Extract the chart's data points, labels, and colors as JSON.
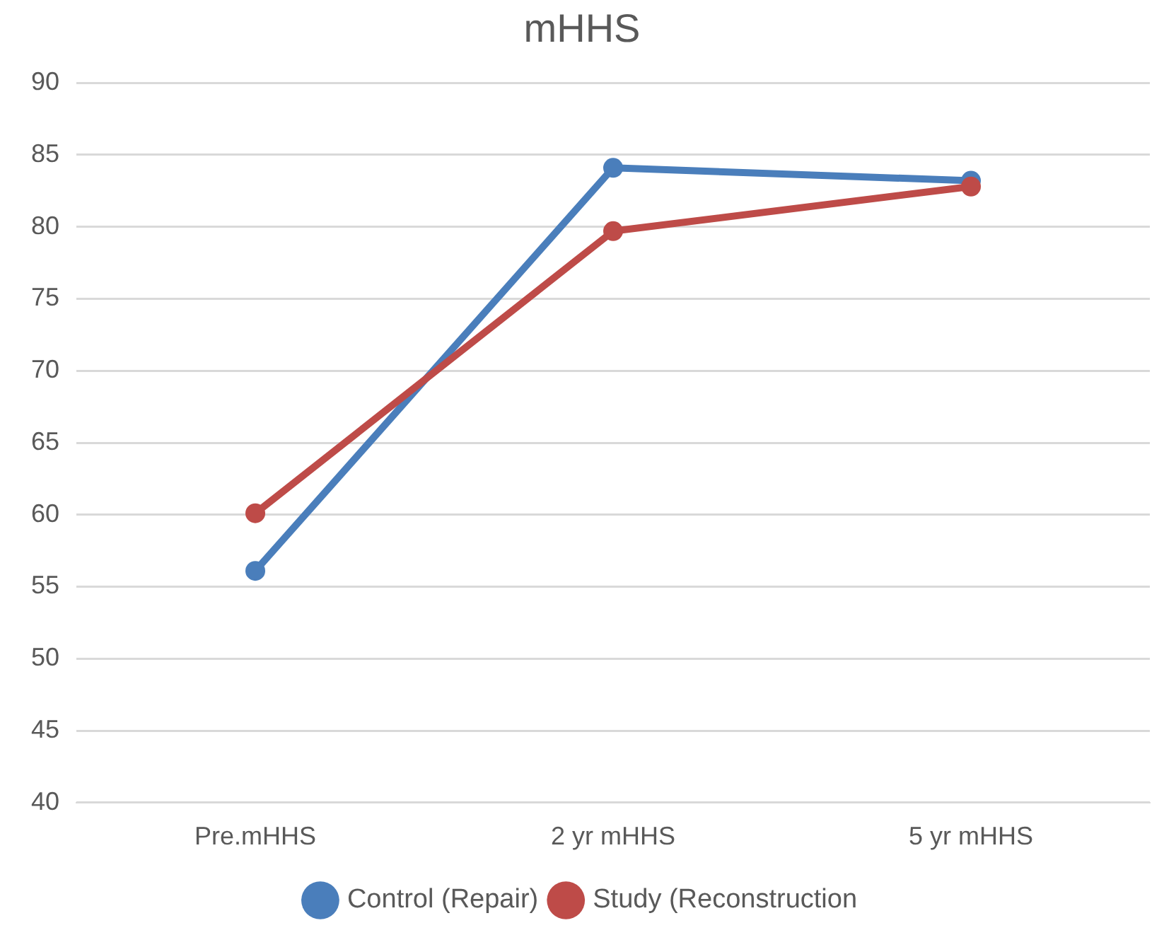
{
  "chart_data": {
    "type": "line",
    "title": "mHHS",
    "categories": [
      "Pre.mHHS",
      "2 yr mHHS",
      "5 yr mHHS"
    ],
    "series": [
      {
        "name": "Control (Repair)",
        "color": "#4a7ebb",
        "values": [
          56.1,
          84.1,
          83.2
        ]
      },
      {
        "name": "Study (Reconstruction",
        "color": "#be4b48",
        "values": [
          60.1,
          79.7,
          82.8
        ]
      }
    ],
    "ylim": [
      40,
      90
    ],
    "yticks": [
      40,
      45,
      50,
      55,
      60,
      65,
      70,
      75,
      80,
      85,
      90
    ],
    "grid": "y",
    "legend": "bottom",
    "marker": "circle",
    "line_style": "solid"
  }
}
